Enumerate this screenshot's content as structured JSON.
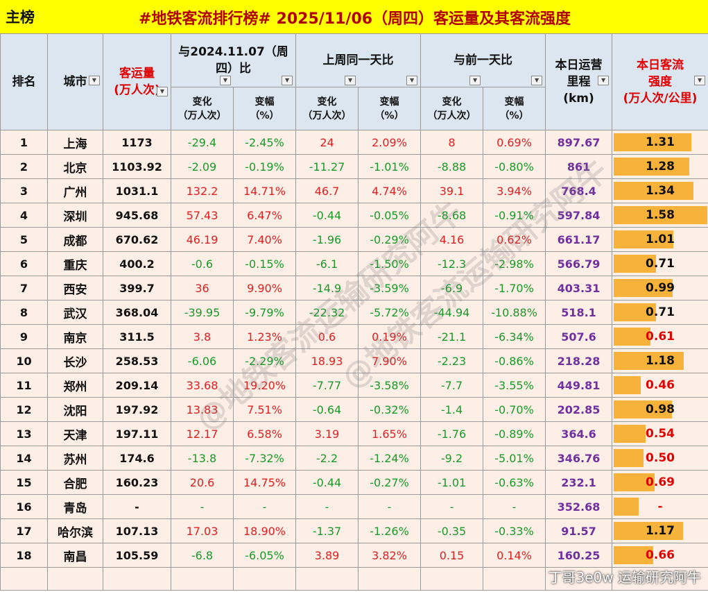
{
  "header": {
    "left_label": "主榜",
    "title": "#地铁客流排行榜# 2025/11/06（周四）客运量及其客流强度"
  },
  "columns": {
    "rank": "排名",
    "city": "城市",
    "volume_l1": "客运量",
    "volume_l2": "(万人次)",
    "yoy_l1": "与2024.11.07（周",
    "yoy_l2": "四）比",
    "wow": "上周同一天比",
    "dod": "与前一天比",
    "length_l1": "本日运营",
    "length_l2": "里程",
    "length_l3": "(km)",
    "density_l1": "本日客流",
    "density_l2": "强度",
    "density_l3": "(万人次/公里)",
    "change_l1": "变化",
    "change_l2": "（万人次）",
    "pct_l1": "变幅",
    "pct_l2": "（%）"
  },
  "rows": [
    {
      "rank": "1",
      "city": "上海",
      "volume": "1173",
      "yoy_chg": "-29.4",
      "yoy_pct": "-2.45%",
      "wow_chg": "24",
      "wow_pct": "2.09%",
      "dod_chg": "8",
      "dod_pct": "0.69%",
      "length": "897.67",
      "density": "1.31"
    },
    {
      "rank": "2",
      "city": "北京",
      "volume": "1103.92",
      "yoy_chg": "-2.09",
      "yoy_pct": "-0.19%",
      "wow_chg": "-11.27",
      "wow_pct": "-1.01%",
      "dod_chg": "-8.88",
      "dod_pct": "-0.80%",
      "length": "861",
      "density": "1.28"
    },
    {
      "rank": "3",
      "city": "广州",
      "volume": "1031.1",
      "yoy_chg": "132.2",
      "yoy_pct": "14.71%",
      "wow_chg": "46.7",
      "wow_pct": "4.74%",
      "dod_chg": "39.1",
      "dod_pct": "3.94%",
      "length": "768.4",
      "density": "1.34"
    },
    {
      "rank": "4",
      "city": "深圳",
      "volume": "945.68",
      "yoy_chg": "57.43",
      "yoy_pct": "6.47%",
      "wow_chg": "-0.44",
      "wow_pct": "-0.05%",
      "dod_chg": "-8.68",
      "dod_pct": "-0.91%",
      "length": "597.84",
      "density": "1.58"
    },
    {
      "rank": "5",
      "city": "成都",
      "volume": "670.62",
      "yoy_chg": "46.19",
      "yoy_pct": "7.40%",
      "wow_chg": "-1.96",
      "wow_pct": "-0.29%",
      "dod_chg": "4.16",
      "dod_pct": "0.62%",
      "length": "661.17",
      "density": "1.01"
    },
    {
      "rank": "6",
      "city": "重庆",
      "volume": "400.2",
      "yoy_chg": "-0.6",
      "yoy_pct": "-0.15%",
      "wow_chg": "-6.1",
      "wow_pct": "-1.50%",
      "dod_chg": "-12.3",
      "dod_pct": "-2.98%",
      "length": "566.79",
      "density": "0.71"
    },
    {
      "rank": "7",
      "city": "西安",
      "volume": "399.7",
      "yoy_chg": "36",
      "yoy_pct": "9.90%",
      "wow_chg": "-14.9",
      "wow_pct": "-3.59%",
      "dod_chg": "-6.9",
      "dod_pct": "-1.70%",
      "length": "403.31",
      "density": "0.99"
    },
    {
      "rank": "8",
      "city": "武汉",
      "volume": "368.04",
      "yoy_chg": "-39.95",
      "yoy_pct": "-9.79%",
      "wow_chg": "-22.32",
      "wow_pct": "-5.72%",
      "dod_chg": "-44.94",
      "dod_pct": "-10.88%",
      "length": "518.1",
      "density": "0.71"
    },
    {
      "rank": "9",
      "city": "南京",
      "volume": "311.5",
      "yoy_chg": "3.8",
      "yoy_pct": "1.23%",
      "wow_chg": "0.6",
      "wow_pct": "0.19%",
      "dod_chg": "-21.1",
      "dod_pct": "-6.34%",
      "length": "507.6",
      "density": "0.61"
    },
    {
      "rank": "10",
      "city": "长沙",
      "volume": "258.53",
      "yoy_chg": "-6.06",
      "yoy_pct": "-2.29%",
      "wow_chg": "18.93",
      "wow_pct": "7.90%",
      "dod_chg": "-2.23",
      "dod_pct": "-0.86%",
      "length": "218.28",
      "density": "1.18"
    },
    {
      "rank": "11",
      "city": "郑州",
      "volume": "209.14",
      "yoy_chg": "33.68",
      "yoy_pct": "19.20%",
      "wow_chg": "-7.77",
      "wow_pct": "-3.58%",
      "dod_chg": "-7.7",
      "dod_pct": "-3.55%",
      "length": "449.81",
      "density": "0.46"
    },
    {
      "rank": "12",
      "city": "沈阳",
      "volume": "197.92",
      "yoy_chg": "13.83",
      "yoy_pct": "7.51%",
      "wow_chg": "-0.64",
      "wow_pct": "-0.32%",
      "dod_chg": "-1.4",
      "dod_pct": "-0.70%",
      "length": "202.85",
      "density": "0.98"
    },
    {
      "rank": "13",
      "city": "天津",
      "volume": "197.11",
      "yoy_chg": "12.17",
      "yoy_pct": "6.58%",
      "wow_chg": "3.19",
      "wow_pct": "1.65%",
      "dod_chg": "-1.76",
      "dod_pct": "-0.89%",
      "length": "364.6",
      "density": "0.54"
    },
    {
      "rank": "14",
      "city": "苏州",
      "volume": "174.6",
      "yoy_chg": "-13.8",
      "yoy_pct": "-7.32%",
      "wow_chg": "-2.2",
      "wow_pct": "-1.24%",
      "dod_chg": "-9.2",
      "dod_pct": "-5.01%",
      "length": "346.76",
      "density": "0.50"
    },
    {
      "rank": "15",
      "city": "合肥",
      "volume": "160.23",
      "yoy_chg": "20.6",
      "yoy_pct": "14.75%",
      "wow_chg": "-0.44",
      "wow_pct": "-0.27%",
      "dod_chg": "-1.01",
      "dod_pct": "-0.63%",
      "length": "232.1",
      "density": "0.69"
    },
    {
      "rank": "16",
      "city": "青岛",
      "volume": "-",
      "yoy_chg": "-",
      "yoy_pct": "-",
      "wow_chg": "-",
      "wow_pct": "-",
      "dod_chg": "-",
      "dod_pct": "-",
      "length": "352.68",
      "density": "-"
    },
    {
      "rank": "17",
      "city": "哈尔滨",
      "volume": "107.13",
      "yoy_chg": "17.03",
      "yoy_pct": "18.90%",
      "wow_chg": "-1.37",
      "wow_pct": "-1.26%",
      "dod_chg": "-0.35",
      "dod_pct": "-0.33%",
      "length": "91.57",
      "density": "1.17"
    },
    {
      "rank": "18",
      "city": "南昌",
      "volume": "105.59",
      "yoy_chg": "-6.8",
      "yoy_pct": "-6.05%",
      "wow_chg": "3.89",
      "wow_pct": "3.82%",
      "dod_chg": "0.15",
      "dod_pct": "0.14%",
      "length": "160.25",
      "density": "0.66"
    }
  ],
  "density_bar_fraction": {
    "1": 0.83,
    "2": 0.81,
    "3": 0.85,
    "4": 1.0,
    "5": 0.64,
    "6": 0.45,
    "7": 0.63,
    "8": 0.45,
    "9": 0.39,
    "10": 0.75,
    "11": 0.29,
    "12": 0.62,
    "13": 0.34,
    "14": 0.32,
    "15": 0.44,
    "16": 0.27,
    "17": 0.74,
    "18": 0.42
  },
  "watermark": {
    "text": "@地铁客流运输研究阿牛",
    "credit": "丁哥3e0w 运输研究阿牛"
  },
  "colors": {
    "title_red": "#b00000",
    "header_bg": "#dbe6f1",
    "row_bg": "#fdeee6",
    "increase": "#e02020",
    "decrease": "#1a9a2a",
    "length_purple": "#7030a0",
    "bar_orange": "#f7b23a",
    "top_yellow": "#ffff00"
  }
}
